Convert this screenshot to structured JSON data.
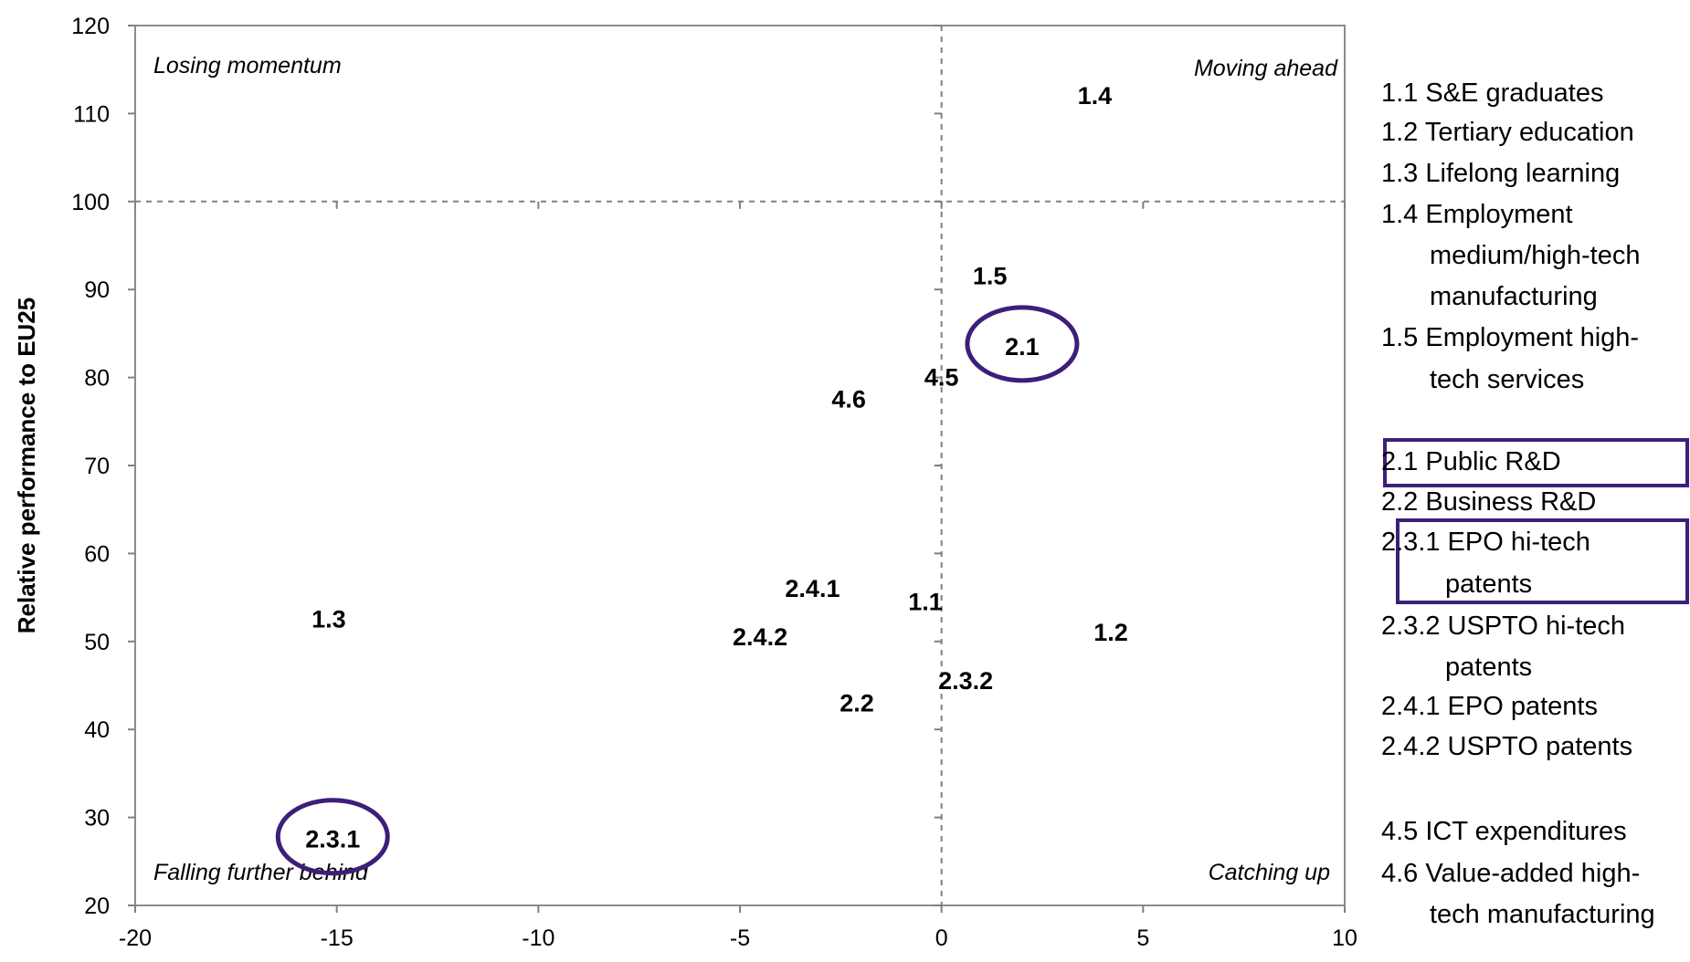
{
  "chart_data": {
    "type": "scatter",
    "title": "",
    "xlabel": "",
    "ylabel": "Relative performance to EU25",
    "xlim": [
      -20,
      10
    ],
    "ylim": [
      20,
      120
    ],
    "x_ticks": [
      "-20",
      "-15",
      "-10",
      "-5",
      "0",
      "5",
      "10"
    ],
    "y_ticks": [
      "20",
      "30",
      "40",
      "50",
      "60",
      "70",
      "80",
      "90",
      "100",
      "110",
      "120"
    ],
    "reference_lines": {
      "x": 0,
      "y": 100
    },
    "grid": false,
    "quadrants": {
      "top_left": "Losing momentum",
      "top_right": "Moving ahead",
      "bottom_left": "Falling further behind",
      "bottom_right": "Catching up"
    },
    "points": [
      {
        "label": "1.4",
        "x": 3.8,
        "y": 112,
        "highlighted": false
      },
      {
        "label": "1.5",
        "x": 1.2,
        "y": 91.5,
        "highlighted": false
      },
      {
        "label": "2.1",
        "x": 2.0,
        "y": 83.5,
        "highlighted": true
      },
      {
        "label": "4.5",
        "x": 0.0,
        "y": 80,
        "highlighted": false
      },
      {
        "label": "4.6",
        "x": -2.3,
        "y": 77.5,
        "highlighted": false
      },
      {
        "label": "2.4.1",
        "x": -3.2,
        "y": 56,
        "highlighted": false
      },
      {
        "label": "1.1",
        "x": -0.4,
        "y": 54.5,
        "highlighted": false
      },
      {
        "label": "1.3",
        "x": -15.2,
        "y": 52.5,
        "highlighted": false
      },
      {
        "label": "2.4.2",
        "x": -4.5,
        "y": 50.5,
        "highlighted": false
      },
      {
        "label": "1.2",
        "x": 4.2,
        "y": 51,
        "highlighted": false
      },
      {
        "label": "2.3.2",
        "x": 0.6,
        "y": 45.5,
        "highlighted": false
      },
      {
        "label": "2.2",
        "x": -2.1,
        "y": 43,
        "highlighted": false
      },
      {
        "label": "2.3.1",
        "x": -15.1,
        "y": 27.5,
        "highlighted": true
      }
    ],
    "highlight_color": "#3d1f7a"
  },
  "legend": [
    "1.1 S&E graduates",
    "1.2 Tertiary education",
    "1.3 Lifelong learning",
    "1.4 Employment",
    "medium/high-tech",
    "manufacturing",
    "1.5 Employment high-",
    "tech services",
    "2.1 Public R&D",
    "2.2 Business R&D",
    "2.3.1 EPO hi-tech",
    "patents",
    "2.3.2 USPTO hi-tech",
    "patents",
    "2.4.1 EPO patents",
    "2.4.2 USPTO patents",
    "4.5 ICT expenditures",
    "4.6 Value-added high-",
    "tech manufacturing"
  ]
}
